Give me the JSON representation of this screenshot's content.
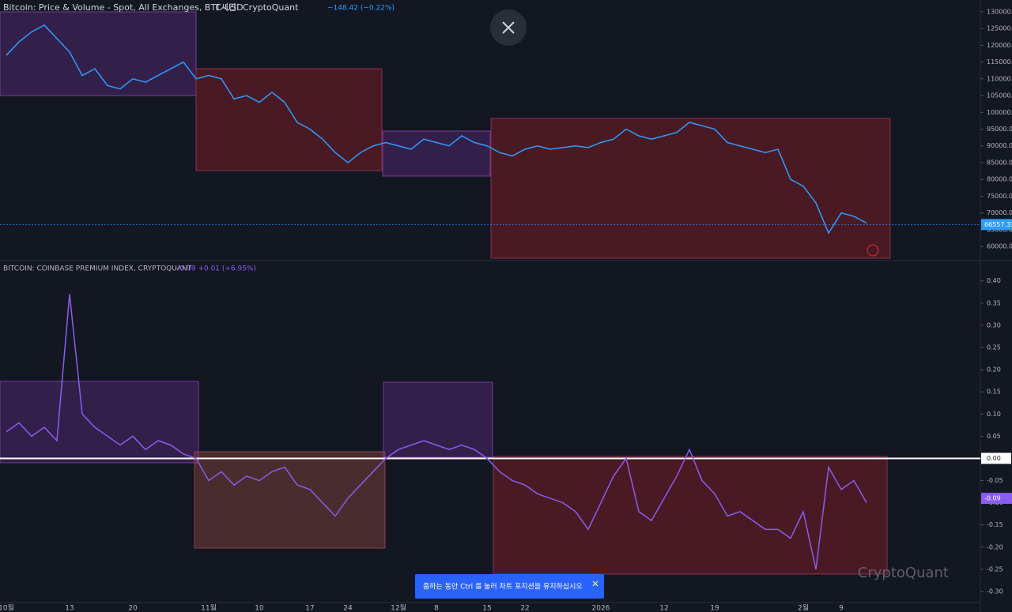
{
  "chart_data": [
    {
      "type": "line",
      "title": "Bitcoin: Price & Volume - Spot, All Exchanges, BTC-USD",
      "interval": "1시간",
      "source": "CryptoQuant",
      "change": "−148.42 (−0.22%)",
      "color": "#2f9bff",
      "last_value": 66557.33,
      "values": [
        117000,
        121000,
        124000,
        126000,
        122000,
        118000,
        111000,
        113000,
        108000,
        107000,
        110000,
        109000,
        111000,
        113000,
        115000,
        110000,
        111000,
        110000,
        104000,
        105000,
        103000,
        106000,
        103000,
        97000,
        95000,
        92000,
        88000,
        85000,
        88000,
        90000,
        91000,
        90000,
        89000,
        92000,
        91000,
        90000,
        93000,
        91000,
        90000,
        88000,
        87000,
        89000,
        90000,
        89000,
        89500,
        90000,
        89500,
        91000,
        92000,
        95000,
        93000,
        92000,
        93000,
        94000,
        97000,
        96000,
        95000,
        91000,
        90000,
        89000,
        88000,
        89000,
        80000,
        78000,
        73000,
        64000,
        70000,
        69000,
        67000
      ],
      "ylim": [
        56500,
        133500
      ],
      "yticks": [
        {
          "value": 60000,
          "label": "60000.00"
        },
        {
          "value": 65000,
          "label": "65000.00"
        },
        {
          "value": 70000,
          "label": "70000.00"
        },
        {
          "value": 75000,
          "label": "75000.00"
        },
        {
          "value": 80000,
          "label": "80000.00"
        },
        {
          "value": 85000,
          "label": "85000.00"
        },
        {
          "value": 90000,
          "label": "90000.00"
        },
        {
          "value": 95000,
          "label": "95000.00"
        },
        {
          "value": 100000,
          "label": "100000.00"
        },
        {
          "value": 105000,
          "label": "105000.00"
        },
        {
          "value": 110000,
          "label": "110000.00"
        },
        {
          "value": 115000,
          "label": "115000.00"
        },
        {
          "value": 120000,
          "label": "120000.00"
        },
        {
          "value": 125000,
          "label": "125000.00"
        },
        {
          "value": 130000,
          "label": "130000.00"
        }
      ]
    },
    {
      "type": "line",
      "title": "BITCOIN: COINBASE PREMIUM INDEX, CRYPTOQUANT",
      "change": "−0.09 +0.01 (+6.95%)",
      "color": "#8a5cf0",
      "last_value": -0.09,
      "categories": [
        "10월",
        null,
        null,
        null,
        null,
        "13",
        null,
        null,
        null,
        null,
        "20",
        null,
        null,
        null,
        null,
        null,
        "11월",
        null,
        null,
        null,
        "10",
        null,
        null,
        null,
        "17",
        null,
        null,
        "24",
        null,
        null,
        null,
        "12월",
        null,
        null,
        "8",
        null,
        null,
        null,
        "15",
        null,
        null,
        "22",
        null,
        null,
        null,
        null,
        null,
        "2026",
        null,
        null,
        null,
        null,
        "12",
        null,
        null,
        null,
        "19",
        null,
        null,
        null,
        null,
        null,
        null,
        "2월",
        null,
        null,
        "9",
        null,
        null
      ],
      "values": [
        0.06,
        0.08,
        0.05,
        0.07,
        0.04,
        0.37,
        0.1,
        0.07,
        0.05,
        0.03,
        0.05,
        0.02,
        0.04,
        0.03,
        0.01,
        0.0,
        -0.05,
        -0.03,
        -0.06,
        -0.04,
        -0.05,
        -0.03,
        -0.02,
        -0.06,
        -0.07,
        -0.1,
        -0.13,
        -0.09,
        -0.06,
        -0.03,
        0.0,
        0.02,
        0.03,
        0.04,
        0.03,
        0.02,
        0.03,
        0.02,
        0.0,
        -0.03,
        -0.05,
        -0.06,
        -0.08,
        -0.09,
        -0.1,
        -0.12,
        -0.16,
        -0.1,
        -0.04,
        0.0,
        -0.12,
        -0.14,
        -0.09,
        -0.04,
        0.02,
        -0.05,
        -0.08,
        -0.13,
        -0.12,
        -0.14,
        -0.16,
        -0.16,
        -0.18,
        -0.12,
        -0.25,
        -0.02,
        -0.07,
        -0.05,
        -0.1
      ],
      "ylim": [
        -0.316,
        0.428
      ],
      "yticks": [
        {
          "value": -0.3,
          "label": "-0.30"
        },
        {
          "value": -0.25,
          "label": "-0.25"
        },
        {
          "value": -0.2,
          "label": "-0.20"
        },
        {
          "value": -0.15,
          "label": "-0.15"
        },
        {
          "value": -0.1,
          "label": "-0.10"
        },
        {
          "value": -0.05,
          "label": "-0.05"
        },
        {
          "value": 0,
          "label": "0.00"
        },
        {
          "value": 0.05,
          "label": "0.05"
        },
        {
          "value": 0.1,
          "label": "0.10"
        },
        {
          "value": 0.15,
          "label": "0.15"
        },
        {
          "value": 0.2,
          "label": "0.20"
        },
        {
          "value": 0.25,
          "label": "0.25"
        },
        {
          "value": 0.3,
          "label": "0.30"
        },
        {
          "value": 0.35,
          "label": "0.35"
        },
        {
          "value": 0.4,
          "label": "0.40"
        }
      ]
    }
  ],
  "toast": "줌하는 동안 Ctrl 를 눌러 차트 포지션을 유지하십시오",
  "watermark": "CryptoQuant"
}
